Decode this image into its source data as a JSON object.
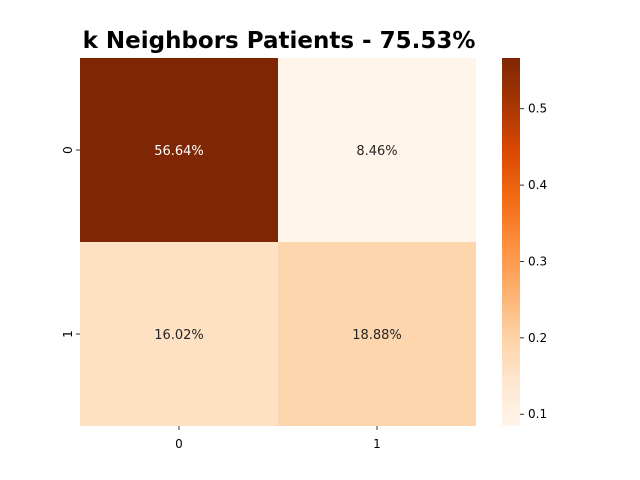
{
  "chart_data": {
    "type": "heatmap",
    "title": "k Neighbors Patients - 75.53%",
    "x_categories": [
      "0",
      "1"
    ],
    "y_categories": [
      "0",
      "1"
    ],
    "values": [
      [
        0.5664,
        0.0846
      ],
      [
        0.1602,
        0.1888
      ]
    ],
    "cell_labels": [
      [
        "56.64%",
        "8.46%"
      ],
      [
        "16.02%",
        "18.88%"
      ]
    ],
    "colorbar": {
      "range": [
        0.0846,
        0.5664
      ],
      "ticks": [
        0.1,
        0.2,
        0.3,
        0.4,
        0.5
      ],
      "tick_labels": [
        "0.1",
        "0.2",
        "0.3",
        "0.4",
        "0.5"
      ],
      "colormap": "Oranges"
    },
    "grid": false
  }
}
